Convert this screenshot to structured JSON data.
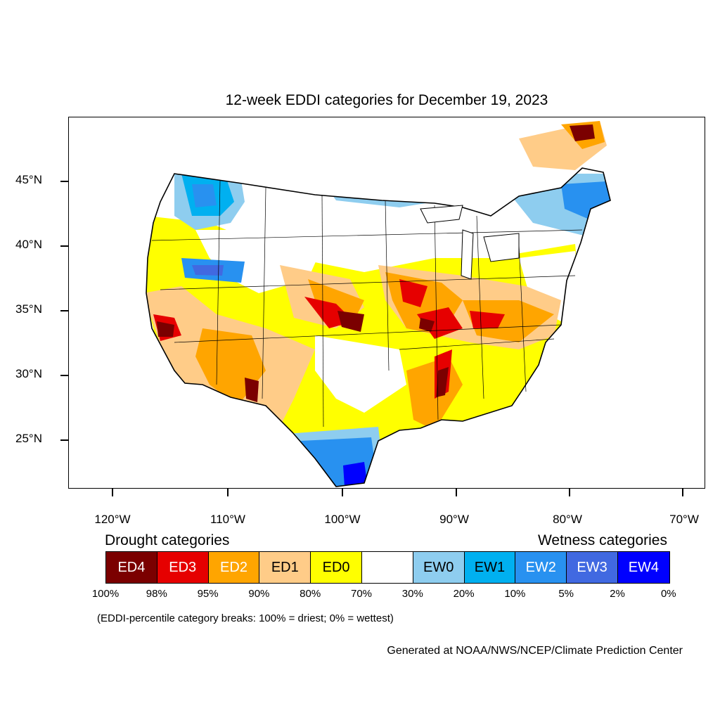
{
  "title": "12-week EDDI categories for December 19, 2023",
  "map": {
    "lat_labels": [
      "45°N",
      "40°N",
      "35°N",
      "30°N",
      "25°N"
    ],
    "lon_labels": [
      "120°W",
      "110°W",
      "100°W",
      "90°W",
      "80°W",
      "70°W"
    ],
    "colors": {
      "ED4": "#7b0000",
      "ED3": "#e60000",
      "ED2": "#ffa500",
      "ED1": "#ffcc88",
      "ED0": "#ffff00",
      "EW0": "#8ecdef",
      "EW1": "#00b0f0",
      "EW2": "#2891f0",
      "EW3": "#4169e1",
      "EW4": "#0000ff"
    }
  },
  "legend": {
    "drought_title": "Drought categories",
    "wetness_title": "Wetness categories",
    "categories": [
      {
        "label": "ED4",
        "color": "#7b0000",
        "text_color": "#ffffff"
      },
      {
        "label": "ED3",
        "color": "#e60000",
        "text_color": "#ffffff"
      },
      {
        "label": "ED2",
        "color": "#ffa500",
        "text_color": "#ffffff"
      },
      {
        "label": "ED1",
        "color": "#ffcc88",
        "text_color": "#000000"
      },
      {
        "label": "ED0",
        "color": "#ffff00",
        "text_color": "#000000"
      },
      {
        "label": "",
        "color": "#ffffff",
        "text_color": "#000000"
      },
      {
        "label": "EW0",
        "color": "#8ecdef",
        "text_color": "#000000"
      },
      {
        "label": "EW1",
        "color": "#00b0f0",
        "text_color": "#000000"
      },
      {
        "label": "EW2",
        "color": "#2891f0",
        "text_color": "#ffffff"
      },
      {
        "label": "EW3",
        "color": "#4169e1",
        "text_color": "#ffffff"
      },
      {
        "label": "EW4",
        "color": "#0000ff",
        "text_color": "#ffffff"
      }
    ],
    "breaks": [
      "100%",
      "98%",
      "95%",
      "90%",
      "80%",
      "70%",
      "30%",
      "20%",
      "10%",
      "5%",
      "2%",
      "0%"
    ]
  },
  "note": "(EDDI-percentile category breaks: 100% = driest; 0% = wettest)",
  "credit": "Generated at NOAA/NWS/NCEP/Climate Prediction Center"
}
